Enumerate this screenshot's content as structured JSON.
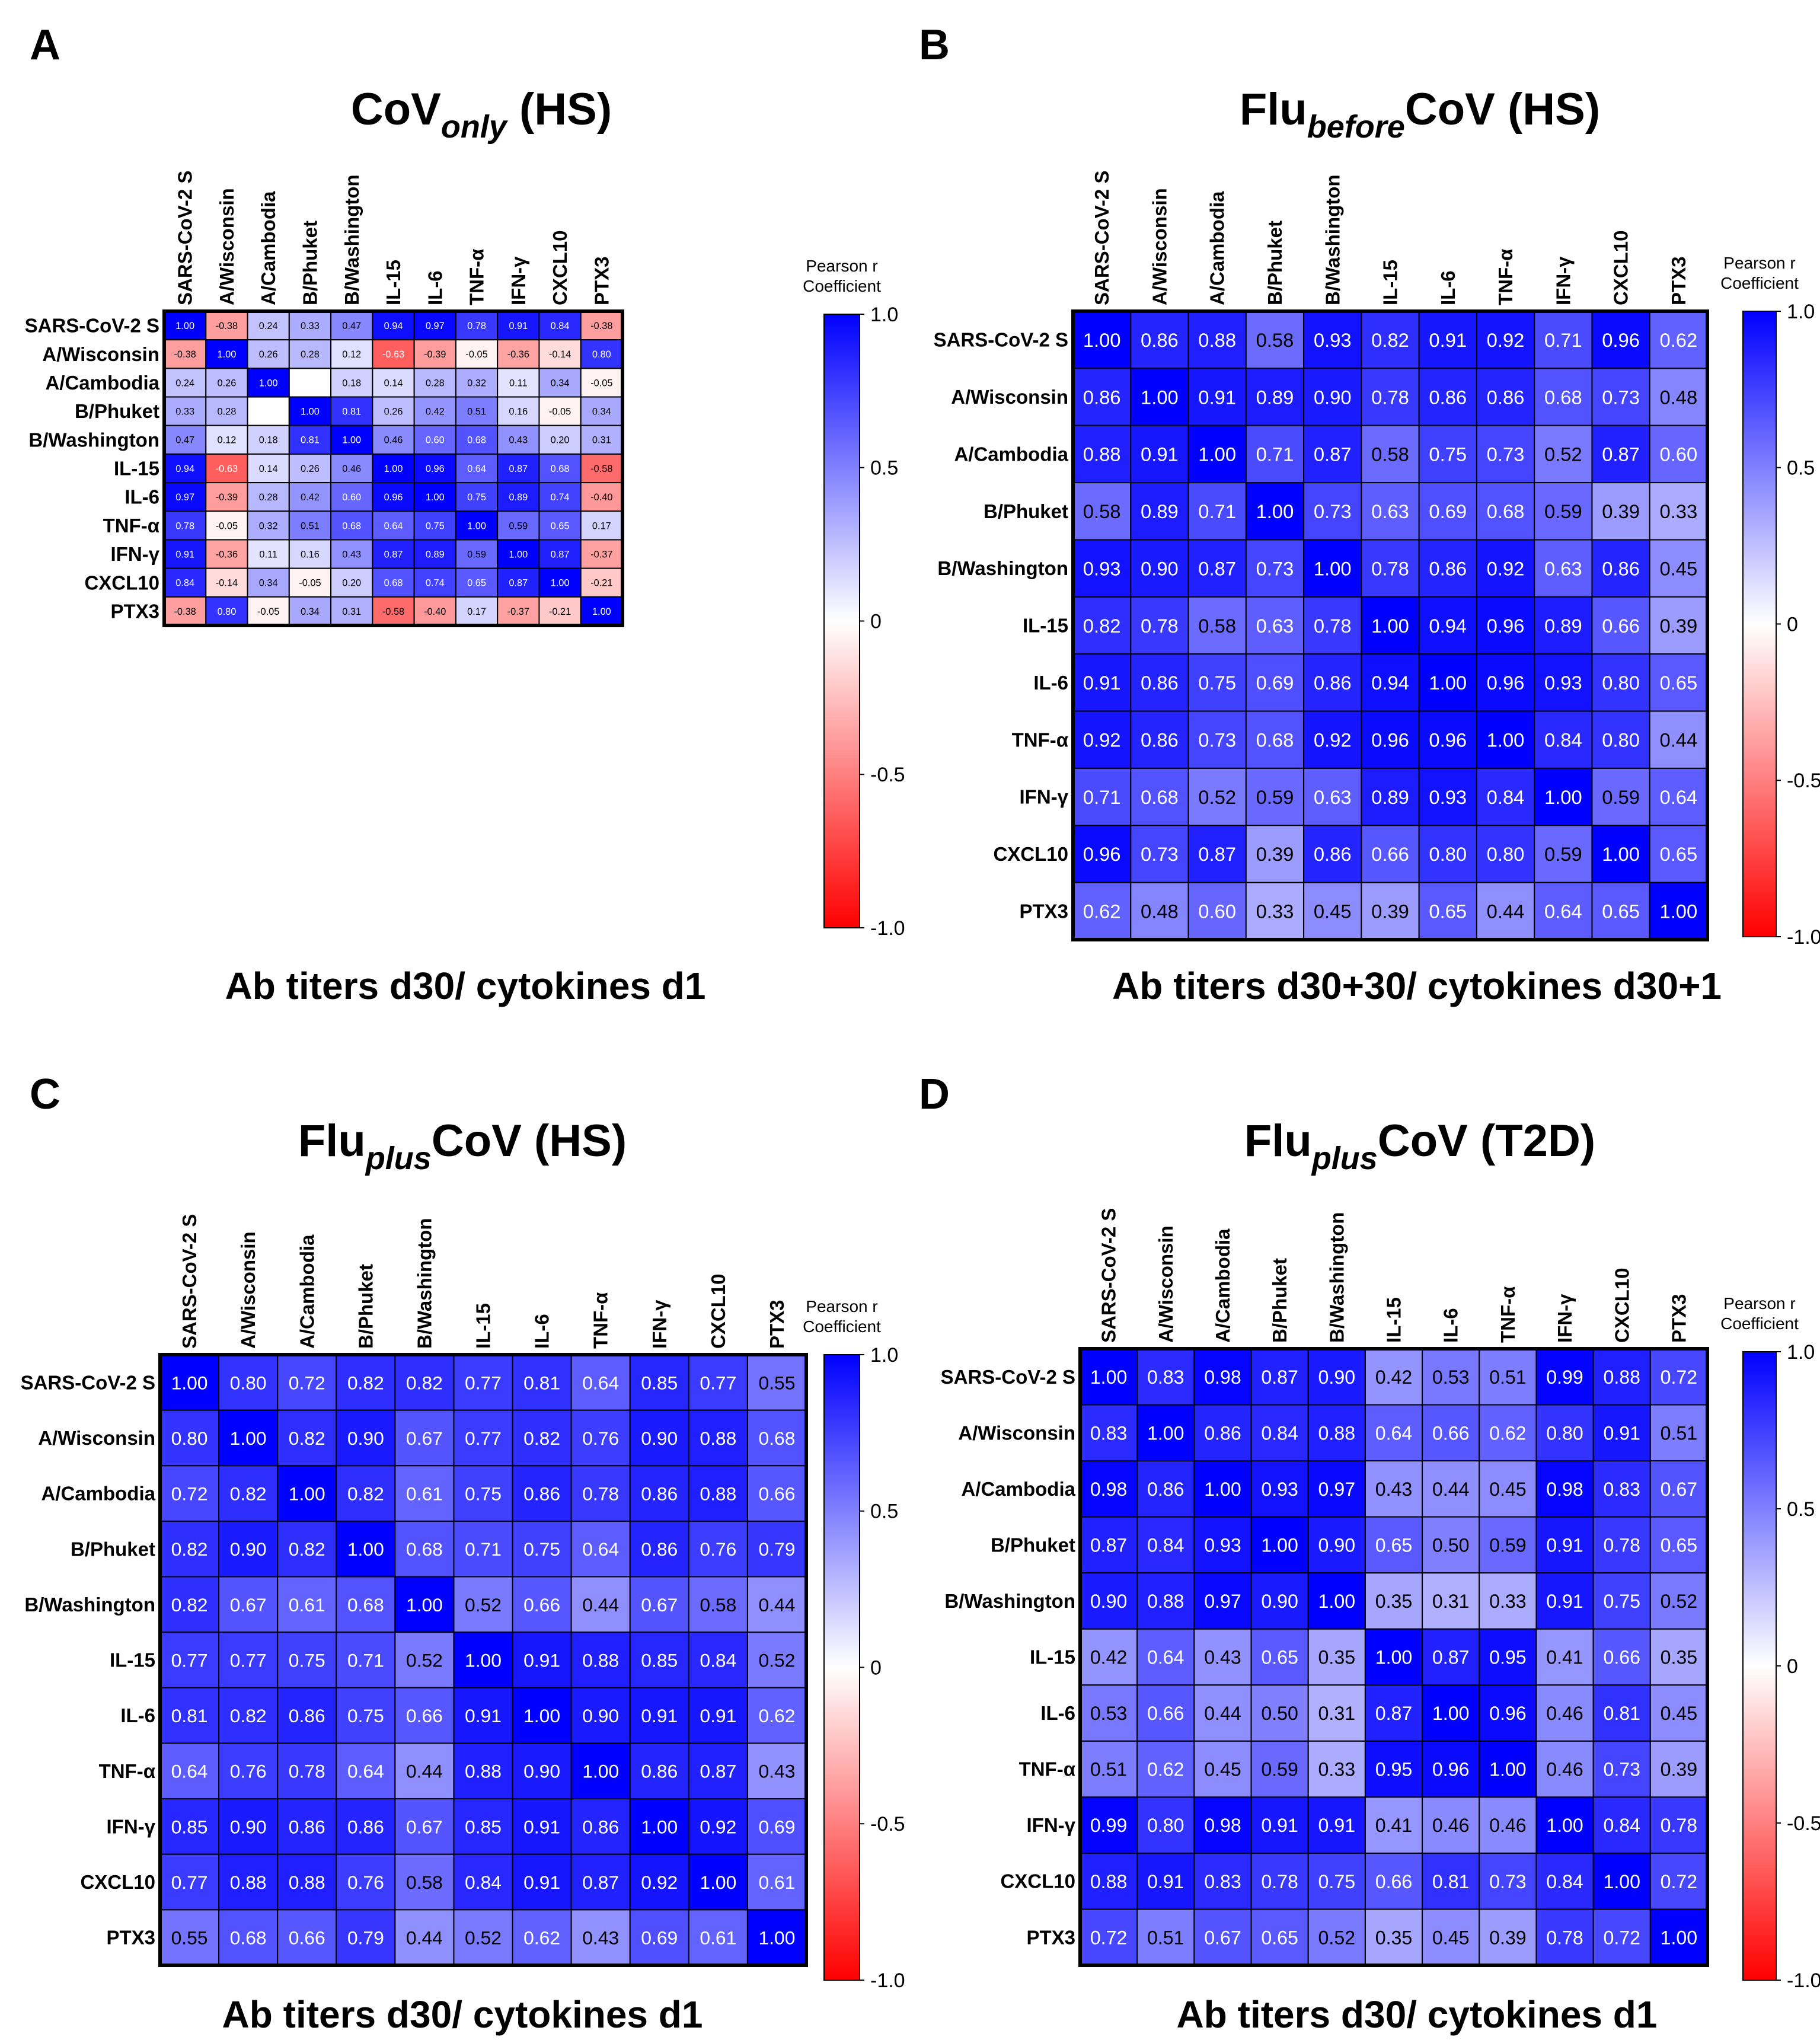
{
  "figure": {
    "layout": "2x2 grid of heatmaps"
  },
  "chart_data": [
    {
      "panel_letter": "A",
      "type": "heatmap",
      "title_main": "CoV",
      "title_sub": "only",
      "title_tail": " (HS)",
      "xlabel": "Ab titers d30/ cytokines d1",
      "rows": [
        "SARS-CoV-2 S",
        "A/Wisconsin",
        "A/Cambodia",
        "B/Phuket",
        "B/Washington",
        "IL-15",
        "IL-6",
        "TNF-α",
        "IFN-γ",
        "CXCL10",
        "PTX3"
      ],
      "cols": [
        "SARS-CoV-2 S",
        "A/Wisconsin",
        "A/Cambodia",
        "B/Phuket",
        "B/Washington",
        "IL-15",
        "IL-6",
        "TNF-α",
        "IFN-γ",
        "CXCL10",
        "PTX3"
      ],
      "values": [
        [
          "1.00",
          "-0.38",
          "0.24",
          "0.33",
          "0.47",
          "0.94",
          "0.97",
          "0.78",
          "0.91",
          "0.84",
          "-0.38"
        ],
        [
          "-0.38",
          "1.00",
          "0.26",
          "0.28",
          "0.12",
          "-0.63",
          "-0.39",
          "-0.05",
          "-0.36",
          "-0.14",
          "0.80"
        ],
        [
          "0.24",
          "0.26",
          "1.00",
          "",
          "0.18",
          "0.14",
          "0.28",
          "0.32",
          "0.11",
          "0.34",
          "-0.05"
        ],
        [
          "0.33",
          "0.28",
          "",
          "1.00",
          "0.81",
          "0.26",
          "0.42",
          "0.51",
          "0.16",
          "-0.05",
          "0.34"
        ],
        [
          "0.47",
          "0.12",
          "0.18",
          "0.81",
          "1.00",
          "0.46",
          "0.60",
          "0.68",
          "0.43",
          "0.20",
          "0.31"
        ],
        [
          "0.94",
          "-0.63",
          "0.14",
          "0.26",
          "0.46",
          "1.00",
          "0.96",
          "0.64",
          "0.87",
          "0.68",
          "-0.58"
        ],
        [
          "0.97",
          "-0.39",
          "0.28",
          "0.42",
          "0.60",
          "0.96",
          "1.00",
          "0.75",
          "0.89",
          "0.74",
          "-0.40"
        ],
        [
          "0.78",
          "-0.05",
          "0.32",
          "0.51",
          "0.68",
          "0.64",
          "0.75",
          "1.00",
          "0.59",
          "0.65",
          "0.17"
        ],
        [
          "0.91",
          "-0.36",
          "0.11",
          "0.16",
          "0.43",
          "0.87",
          "0.89",
          "0.59",
          "1.00",
          "0.87",
          "-0.37"
        ],
        [
          "0.84",
          "-0.14",
          "0.34",
          "-0.05",
          "0.20",
          "0.68",
          "0.74",
          "0.65",
          "0.87",
          "1.00",
          "-0.21"
        ],
        [
          "-0.38",
          "0.80",
          "-0.05",
          "0.34",
          "0.31",
          "-0.58",
          "-0.40",
          "0.17",
          "-0.37",
          "-0.21",
          "1.00"
        ]
      ],
      "colorbar": {
        "title": "Pearson r Coefficient",
        "title_lines": [
          "Pearson r",
          "Coefficient"
        ],
        "ticks": [
          "1.0",
          "0.5",
          "0",
          "-0.5",
          "-1.0"
        ],
        "range": [
          -1,
          1
        ]
      }
    },
    {
      "panel_letter": "B",
      "type": "heatmap",
      "title_main": "Flu",
      "title_sub": "before",
      "title_tail": "CoV (HS)",
      "xlabel": "Ab titers d30+30/ cytokines d30+1",
      "rows": [
        "SARS-CoV-2 S",
        "A/Wisconsin",
        "A/Cambodia",
        "B/Phuket",
        "B/Washington",
        "IL-15",
        "IL-6",
        "TNF-α",
        "IFN-γ",
        "CXCL10",
        "PTX3"
      ],
      "cols": [
        "SARS-CoV-2 S",
        "A/Wisconsin",
        "A/Cambodia",
        "B/Phuket",
        "B/Washington",
        "IL-15",
        "IL-6",
        "TNF-α",
        "IFN-γ",
        "CXCL10",
        "PTX3"
      ],
      "values": [
        [
          "1.00",
          "0.86",
          "0.88",
          "0.58",
          "0.93",
          "0.82",
          "0.91",
          "0.92",
          "0.71",
          "0.96",
          "0.62"
        ],
        [
          "0.86",
          "1.00",
          "0.91",
          "0.89",
          "0.90",
          "0.78",
          "0.86",
          "0.86",
          "0.68",
          "0.73",
          "0.48"
        ],
        [
          "0.88",
          "0.91",
          "1.00",
          "0.71",
          "0.87",
          "0.58",
          "0.75",
          "0.73",
          "0.52",
          "0.87",
          "0.60"
        ],
        [
          "0.58",
          "0.89",
          "0.71",
          "1.00",
          "0.73",
          "0.63",
          "0.69",
          "0.68",
          "0.59",
          "0.39",
          "0.33"
        ],
        [
          "0.93",
          "0.90",
          "0.87",
          "0.73",
          "1.00",
          "0.78",
          "0.86",
          "0.92",
          "0.63",
          "0.86",
          "0.45"
        ],
        [
          "0.82",
          "0.78",
          "0.58",
          "0.63",
          "0.78",
          "1.00",
          "0.94",
          "0.96",
          "0.89",
          "0.66",
          "0.39"
        ],
        [
          "0.91",
          "0.86",
          "0.75",
          "0.69",
          "0.86",
          "0.94",
          "1.00",
          "0.96",
          "0.93",
          "0.80",
          "0.65"
        ],
        [
          "0.92",
          "0.86",
          "0.73",
          "0.68",
          "0.92",
          "0.96",
          "0.96",
          "1.00",
          "0.84",
          "0.80",
          "0.44"
        ],
        [
          "0.71",
          "0.68",
          "0.52",
          "0.59",
          "0.63",
          "0.89",
          "0.93",
          "0.84",
          "1.00",
          "0.59",
          "0.64"
        ],
        [
          "0.96",
          "0.73",
          "0.87",
          "0.39",
          "0.86",
          "0.66",
          "0.80",
          "0.80",
          "0.59",
          "1.00",
          "0.65"
        ],
        [
          "0.62",
          "0.48",
          "0.60",
          "0.33",
          "0.45",
          "0.39",
          "0.65",
          "0.44",
          "0.64",
          "0.65",
          "1.00"
        ]
      ],
      "colorbar": {
        "title": "Pearson r Coefficient",
        "title_lines": [
          "Pearson r",
          "Coefficient"
        ],
        "ticks": [
          "1.0",
          "0.5",
          "0",
          "-0.5",
          "-1.0"
        ],
        "range": [
          -1,
          1
        ]
      }
    },
    {
      "panel_letter": "C",
      "type": "heatmap",
      "title_main": "Flu",
      "title_sub": "plus",
      "title_tail": "CoV (HS)",
      "xlabel": "Ab titers d30/ cytokines d1",
      "rows": [
        "SARS-CoV-2 S",
        "A/Wisconsin",
        "A/Cambodia",
        "B/Phuket",
        "B/Washington",
        "IL-15",
        "IL-6",
        "TNF-α",
        "IFN-γ",
        "CXCL10",
        "PTX3"
      ],
      "cols": [
        "SARS-CoV-2 S",
        "A/Wisconsin",
        "A/Cambodia",
        "B/Phuket",
        "B/Washington",
        "IL-15",
        "IL-6",
        "TNF-α",
        "IFN-γ",
        "CXCL10",
        "PTX3"
      ],
      "values": [
        [
          "1.00",
          "0.80",
          "0.72",
          "0.82",
          "0.82",
          "0.77",
          "0.81",
          "0.64",
          "0.85",
          "0.77",
          "0.55"
        ],
        [
          "0.80",
          "1.00",
          "0.82",
          "0.90",
          "0.67",
          "0.77",
          "0.82",
          "0.76",
          "0.90",
          "0.88",
          "0.68"
        ],
        [
          "0.72",
          "0.82",
          "1.00",
          "0.82",
          "0.61",
          "0.75",
          "0.86",
          "0.78",
          "0.86",
          "0.88",
          "0.66"
        ],
        [
          "0.82",
          "0.90",
          "0.82",
          "1.00",
          "0.68",
          "0.71",
          "0.75",
          "0.64",
          "0.86",
          "0.76",
          "0.79"
        ],
        [
          "0.82",
          "0.67",
          "0.61",
          "0.68",
          "1.00",
          "0.52",
          "0.66",
          "0.44",
          "0.67",
          "0.58",
          "0.44"
        ],
        [
          "0.77",
          "0.77",
          "0.75",
          "0.71",
          "0.52",
          "1.00",
          "0.91",
          "0.88",
          "0.85",
          "0.84",
          "0.52"
        ],
        [
          "0.81",
          "0.82",
          "0.86",
          "0.75",
          "0.66",
          "0.91",
          "1.00",
          "0.90",
          "0.91",
          "0.91",
          "0.62"
        ],
        [
          "0.64",
          "0.76",
          "0.78",
          "0.64",
          "0.44",
          "0.88",
          "0.90",
          "1.00",
          "0.86",
          "0.87",
          "0.43"
        ],
        [
          "0.85",
          "0.90",
          "0.86",
          "0.86",
          "0.67",
          "0.85",
          "0.91",
          "0.86",
          "1.00",
          "0.92",
          "0.69"
        ],
        [
          "0.77",
          "0.88",
          "0.88",
          "0.76",
          "0.58",
          "0.84",
          "0.91",
          "0.87",
          "0.92",
          "1.00",
          "0.61"
        ],
        [
          "0.55",
          "0.68",
          "0.66",
          "0.79",
          "0.44",
          "0.52",
          "0.62",
          "0.43",
          "0.69",
          "0.61",
          "1.00"
        ]
      ],
      "colorbar": {
        "title": "Pearson r Coefficient",
        "title_lines": [
          "Pearson r",
          "Coefficient"
        ],
        "ticks": [
          "1.0",
          "0.5",
          "0",
          "-0.5",
          "-1.0"
        ],
        "range": [
          -1,
          1
        ]
      }
    },
    {
      "panel_letter": "D",
      "type": "heatmap",
      "title_main": "Flu",
      "title_sub": "plus",
      "title_tail": "CoV (T2D)",
      "xlabel": "Ab titers d30/ cytokines d1",
      "rows": [
        "SARS-CoV-2 S",
        "A/Wisconsin",
        "A/Cambodia",
        "B/Phuket",
        "B/Washington",
        "IL-15",
        "IL-6",
        "TNF-α",
        "IFN-γ",
        "CXCL10",
        "PTX3"
      ],
      "cols": [
        "SARS-CoV-2 S",
        "A/Wisconsin",
        "A/Cambodia",
        "B/Phuket",
        "B/Washington",
        "IL-15",
        "IL-6",
        "TNF-α",
        "IFN-γ",
        "CXCL10",
        "PTX3"
      ],
      "values": [
        [
          "1.00",
          "0.83",
          "0.98",
          "0.87",
          "0.90",
          "0.42",
          "0.53",
          "0.51",
          "0.99",
          "0.88",
          "0.72"
        ],
        [
          "0.83",
          "1.00",
          "0.86",
          "0.84",
          "0.88",
          "0.64",
          "0.66",
          "0.62",
          "0.80",
          "0.91",
          "0.51"
        ],
        [
          "0.98",
          "0.86",
          "1.00",
          "0.93",
          "0.97",
          "0.43",
          "0.44",
          "0.45",
          "0.98",
          "0.83",
          "0.67"
        ],
        [
          "0.87",
          "0.84",
          "0.93",
          "1.00",
          "0.90",
          "0.65",
          "0.50",
          "0.59",
          "0.91",
          "0.78",
          "0.65"
        ],
        [
          "0.90",
          "0.88",
          "0.97",
          "0.90",
          "1.00",
          "0.35",
          "0.31",
          "0.33",
          "0.91",
          "0.75",
          "0.52"
        ],
        [
          "0.42",
          "0.64",
          "0.43",
          "0.65",
          "0.35",
          "1.00",
          "0.87",
          "0.95",
          "0.41",
          "0.66",
          "0.35"
        ],
        [
          "0.53",
          "0.66",
          "0.44",
          "0.50",
          "0.31",
          "0.87",
          "1.00",
          "0.96",
          "0.46",
          "0.81",
          "0.45"
        ],
        [
          "0.51",
          "0.62",
          "0.45",
          "0.59",
          "0.33",
          "0.95",
          "0.96",
          "1.00",
          "0.46",
          "0.73",
          "0.39"
        ],
        [
          "0.99",
          "0.80",
          "0.98",
          "0.91",
          "0.91",
          "0.41",
          "0.46",
          "0.46",
          "1.00",
          "0.84",
          "0.78"
        ],
        [
          "0.88",
          "0.91",
          "0.83",
          "0.78",
          "0.75",
          "0.66",
          "0.81",
          "0.73",
          "0.84",
          "1.00",
          "0.72"
        ],
        [
          "0.72",
          "0.51",
          "0.67",
          "0.65",
          "0.52",
          "0.35",
          "0.45",
          "0.39",
          "0.78",
          "0.72",
          "1.00"
        ]
      ],
      "colorbar": {
        "title": "Pearson r Coefficient",
        "title_lines": [
          "Pearson r",
          "Coefficient"
        ],
        "ticks": [
          "1.0",
          "0.5",
          "0",
          "-0.5",
          "-1.0"
        ],
        "range": [
          -1,
          1
        ]
      }
    }
  ],
  "colors": {
    "positive": "#0000ff",
    "neutral": "#ffffff",
    "negative": "#ff0000",
    "grid": "#000000"
  }
}
